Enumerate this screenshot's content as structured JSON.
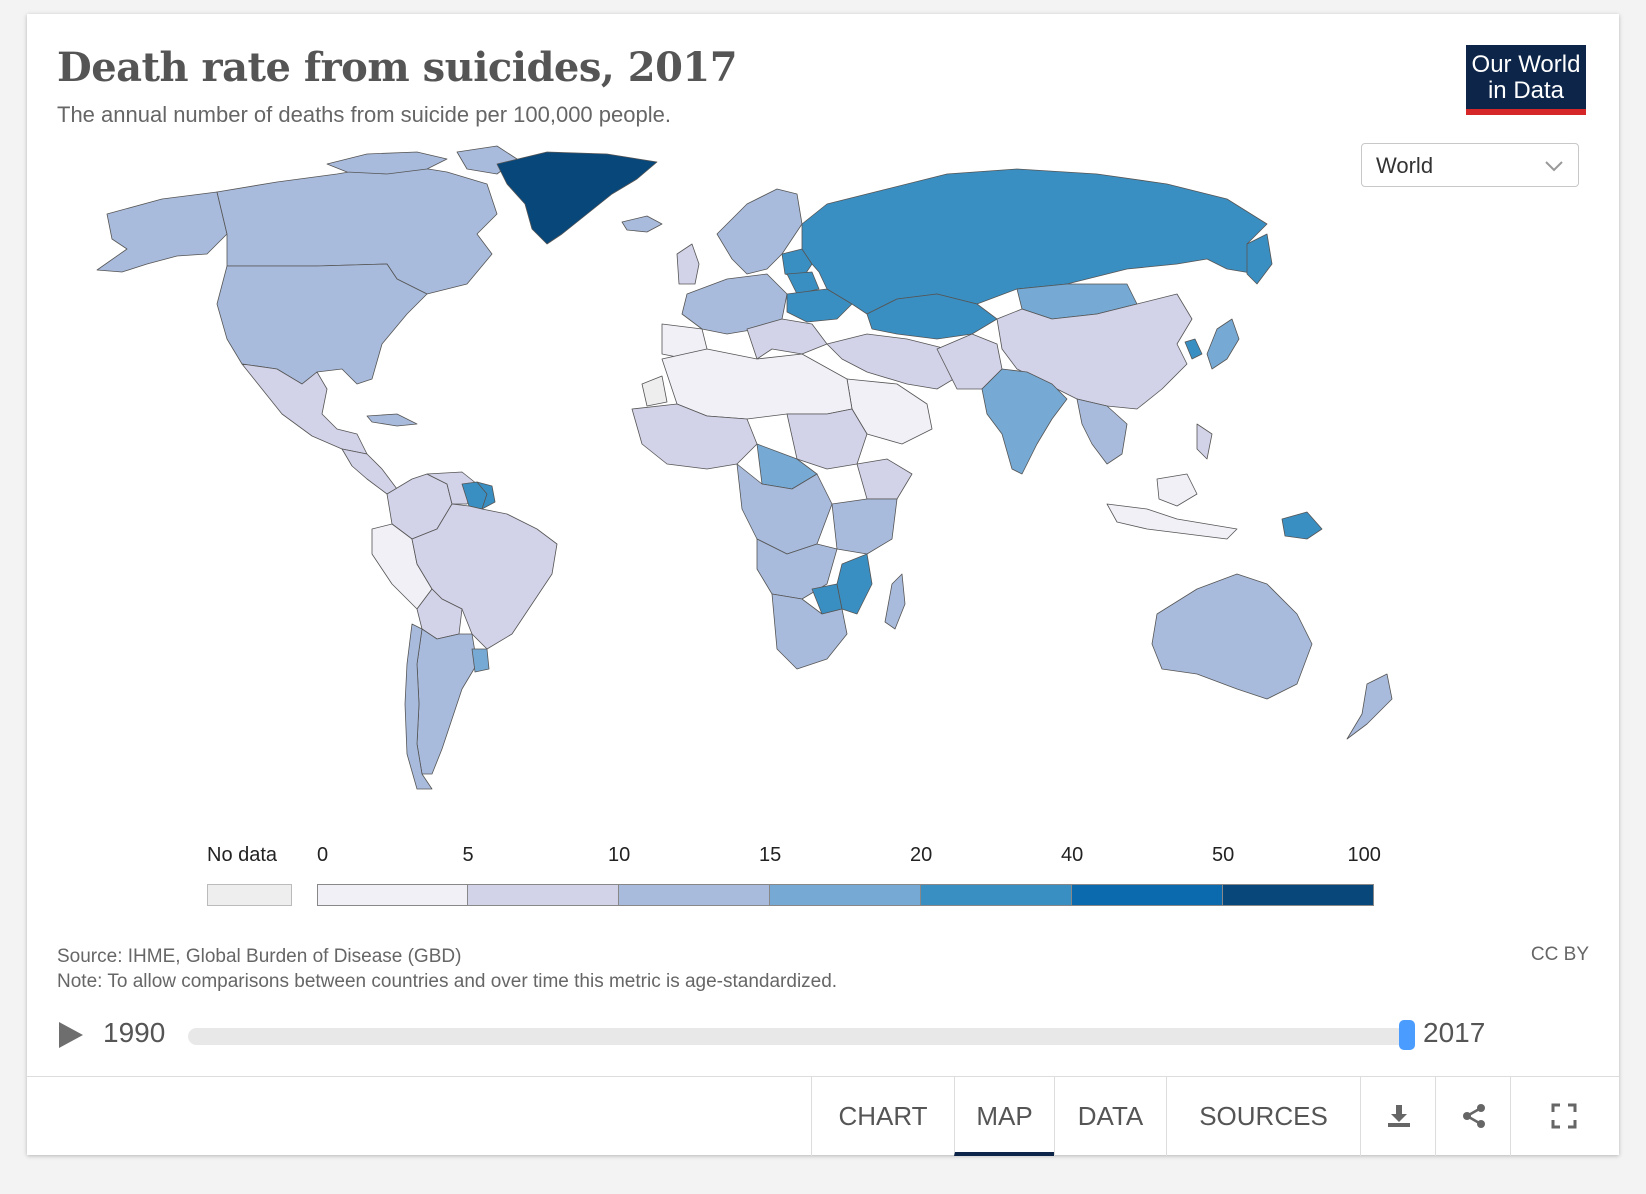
{
  "header": {
    "title": "Death rate from suicides, 2017",
    "subtitle": "The annual number of deaths from suicide per 100,000 people.",
    "logo_line1": "Our World",
    "logo_line2": "in Data"
  },
  "region_select": {
    "selected": "World"
  },
  "legend": {
    "no_data_label": "No data",
    "ticks": [
      "0",
      "5",
      "10",
      "15",
      "20",
      "40",
      "50",
      "100"
    ],
    "colors": [
      "#f1f0f7",
      "#d2d2e8",
      "#a9bbdc",
      "#76a9d3",
      "#3a8fc2",
      "#0b6aae",
      "#08477a"
    ],
    "no_data_color": "#eeeeee"
  },
  "map_data": {
    "type": "choropleth",
    "metric": "Suicide death rate per 100,000 (age-standardized)",
    "year": 2017,
    "bins": [
      0,
      5,
      10,
      15,
      20,
      40,
      50,
      100
    ],
    "regions": [
      {
        "name": "Greenland",
        "bin": "50-100"
      },
      {
        "name": "Russia",
        "bin": "20-40"
      },
      {
        "name": "Kazakhstan",
        "bin": "20-40"
      },
      {
        "name": "Ukraine",
        "bin": "20-40"
      },
      {
        "name": "Belarus",
        "bin": "20-40"
      },
      {
        "name": "Lithuania",
        "bin": "20-40"
      },
      {
        "name": "South Korea",
        "bin": "20-40"
      },
      {
        "name": "Guyana",
        "bin": "20-40"
      },
      {
        "name": "Suriname",
        "bin": "20-40"
      },
      {
        "name": "Lesotho",
        "bin": "20-40"
      },
      {
        "name": "Zimbabwe",
        "bin": "20-40"
      },
      {
        "name": "Mozambique",
        "bin": "20-40"
      },
      {
        "name": "Papua New Guinea",
        "bin": "20-40"
      },
      {
        "name": "Mongolia",
        "bin": "15-20"
      },
      {
        "name": "India",
        "bin": "15-20"
      },
      {
        "name": "Japan",
        "bin": "15-20"
      },
      {
        "name": "Uruguay",
        "bin": "15-20"
      },
      {
        "name": "Central African Republic",
        "bin": "15-20"
      },
      {
        "name": "United States",
        "bin": "10-15"
      },
      {
        "name": "Canada",
        "bin": "10-15"
      },
      {
        "name": "Australia",
        "bin": "10-15"
      },
      {
        "name": "Argentina",
        "bin": "10-15"
      },
      {
        "name": "Chile",
        "bin": "10-15"
      },
      {
        "name": "Democratic Republic of Congo",
        "bin": "10-15"
      },
      {
        "name": "China",
        "bin": "5-10"
      },
      {
        "name": "Brazil",
        "bin": "5-10"
      },
      {
        "name": "Mexico",
        "bin": "5-10"
      },
      {
        "name": "Egypt",
        "bin": "0-5"
      },
      {
        "name": "Saudi Arabia",
        "bin": "0-5"
      },
      {
        "name": "Western Sahara",
        "bin": "No data"
      }
    ]
  },
  "footer_text": {
    "source": "Source: IHME, Global Burden of Disease (GBD)",
    "note": "Note: To allow comparisons between countries and over time this metric is age-standardized.",
    "license": "CC BY"
  },
  "timeline": {
    "start_label": "1990",
    "end_label": "2017",
    "position": 1.0
  },
  "tabs": [
    {
      "label": "CHART",
      "active": false
    },
    {
      "label": "MAP",
      "active": true
    },
    {
      "label": "DATA",
      "active": false
    },
    {
      "label": "SOURCES",
      "active": false
    }
  ],
  "icons": [
    "download-icon",
    "share-icon",
    "fullscreen-icon",
    "play-icon",
    "chevron-down-icon"
  ]
}
